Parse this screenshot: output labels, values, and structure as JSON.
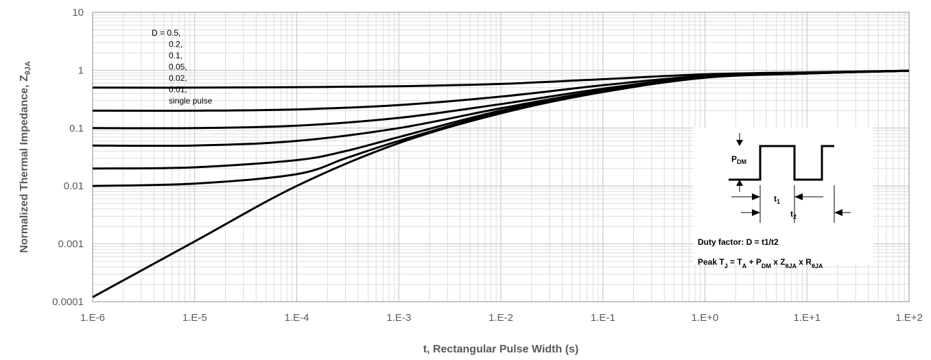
{
  "chart_data": {
    "type": "line",
    "xscale": "log",
    "yscale": "log",
    "xlim": [
      1e-06,
      100
    ],
    "ylim": [
      0.0001,
      10
    ],
    "grid": true,
    "xlabel": "t, Rectangular Pulse Width (s)",
    "ylabel_main": "Normalized Thermal Impedance, Z",
    "ylabel_sub": "θJA",
    "x_tick_labels": [
      "1.E-6",
      "1.E-5",
      "1.E-4",
      "1.E-3",
      "1.E-2",
      "1.E-1",
      "1.E+0",
      "1.E+1",
      "1.E+2"
    ],
    "y_tick_labels": [
      "0.0001",
      "0.001",
      "0.01",
      "0.1",
      "1",
      "10"
    ],
    "legend_lines": [
      "D = 0.5,",
      "0.2,",
      "0.1,",
      "0.05,",
      "0.02,",
      "0.01,",
      "single pulse"
    ],
    "series": [
      {
        "name": "0.5",
        "points": [
          [
            1e-06,
            0.5
          ],
          [
            1e-05,
            0.5
          ],
          [
            0.0001,
            0.51
          ],
          [
            0.001,
            0.53
          ],
          [
            0.01,
            0.58
          ],
          [
            0.1,
            0.7
          ],
          [
            1,
            0.85
          ],
          [
            10,
            0.92
          ],
          [
            100,
            0.98
          ]
        ]
      },
      {
        "name": "0.2",
        "points": [
          [
            1e-06,
            0.2
          ],
          [
            1e-05,
            0.2
          ],
          [
            0.0001,
            0.21
          ],
          [
            0.001,
            0.25
          ],
          [
            0.01,
            0.35
          ],
          [
            0.1,
            0.55
          ],
          [
            1,
            0.8
          ],
          [
            10,
            0.9
          ],
          [
            100,
            0.98
          ]
        ]
      },
      {
        "name": "0.1",
        "points": [
          [
            1e-06,
            0.1
          ],
          [
            1e-05,
            0.1
          ],
          [
            0.0001,
            0.11
          ],
          [
            0.001,
            0.15
          ],
          [
            0.01,
            0.26
          ],
          [
            0.1,
            0.48
          ],
          [
            1,
            0.77
          ],
          [
            10,
            0.89
          ],
          [
            100,
            0.98
          ]
        ]
      },
      {
        "name": "0.05",
        "points": [
          [
            1e-06,
            0.05
          ],
          [
            1e-05,
            0.05
          ],
          [
            0.0001,
            0.06
          ],
          [
            0.001,
            0.1
          ],
          [
            0.01,
            0.22
          ],
          [
            0.1,
            0.45
          ],
          [
            1,
            0.76
          ],
          [
            10,
            0.89
          ],
          [
            100,
            0.98
          ]
        ]
      },
      {
        "name": "0.02",
        "points": [
          [
            1e-06,
            0.02
          ],
          [
            1e-05,
            0.021
          ],
          [
            0.0001,
            0.028
          ],
          [
            0.0003,
            0.04
          ],
          [
            0.001,
            0.07
          ],
          [
            0.01,
            0.2
          ],
          [
            0.1,
            0.43
          ],
          [
            1,
            0.75
          ],
          [
            10,
            0.88
          ],
          [
            100,
            0.98
          ]
        ]
      },
      {
        "name": "0.01",
        "points": [
          [
            1e-06,
            0.01
          ],
          [
            1e-05,
            0.011
          ],
          [
            0.0001,
            0.016
          ],
          [
            0.0003,
            0.03
          ],
          [
            0.001,
            0.06
          ],
          [
            0.01,
            0.19
          ],
          [
            0.1,
            0.42
          ],
          [
            1,
            0.75
          ],
          [
            10,
            0.88
          ],
          [
            100,
            0.98
          ]
        ]
      },
      {
        "name": "single pulse",
        "points": [
          [
            1e-06,
            0.00012
          ],
          [
            1e-05,
            0.0011
          ],
          [
            0.0001,
            0.01
          ],
          [
            0.001,
            0.055
          ],
          [
            0.01,
            0.18
          ],
          [
            0.1,
            0.42
          ],
          [
            1,
            0.74
          ],
          [
            10,
            0.88
          ],
          [
            100,
            0.98
          ]
        ]
      }
    ],
    "inset": {
      "pdm_main": "P",
      "pdm_sub": "DM",
      "t1_main": "t",
      "t1_sub": "1",
      "t2_main": "t",
      "t2_sub": "2",
      "duty_text": "Duty factor: D = t1/t2",
      "peak_parts": [
        {
          "t": "Peak T",
          "sub": false
        },
        {
          "t": "J",
          "sub": true
        },
        {
          "t": " = T",
          "sub": false
        },
        {
          "t": "A",
          "sub": true
        },
        {
          "t": " + P",
          "sub": false
        },
        {
          "t": "DM",
          "sub": true
        },
        {
          "t": " x Z",
          "sub": false
        },
        {
          "t": "θJA",
          "sub": true
        },
        {
          "t": " x R",
          "sub": false
        },
        {
          "t": "θJA",
          "sub": true
        }
      ]
    }
  }
}
